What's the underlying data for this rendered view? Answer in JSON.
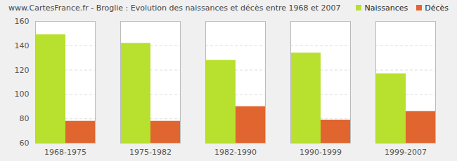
{
  "chart_data": {
    "type": "bar",
    "title": "www.CartesFrance.fr - Broglie : Evolution des naissances et décès entre 1968 et 2007",
    "categories": [
      "1968-1975",
      "1975-1982",
      "1982-1990",
      "1990-1999",
      "1999-2007"
    ],
    "series": [
      {
        "name": "Naissances",
        "color": "#b8e02e",
        "values": [
          149,
          142,
          128,
          134,
          117
        ]
      },
      {
        "name": "Décès",
        "color": "#e0652e",
        "values": [
          78,
          78,
          90,
          79,
          86
        ]
      }
    ],
    "ylim": [
      60,
      160
    ],
    "yticks": [
      60,
      80,
      100,
      120,
      140,
      160
    ],
    "grid": true,
    "legend": "top-right"
  }
}
